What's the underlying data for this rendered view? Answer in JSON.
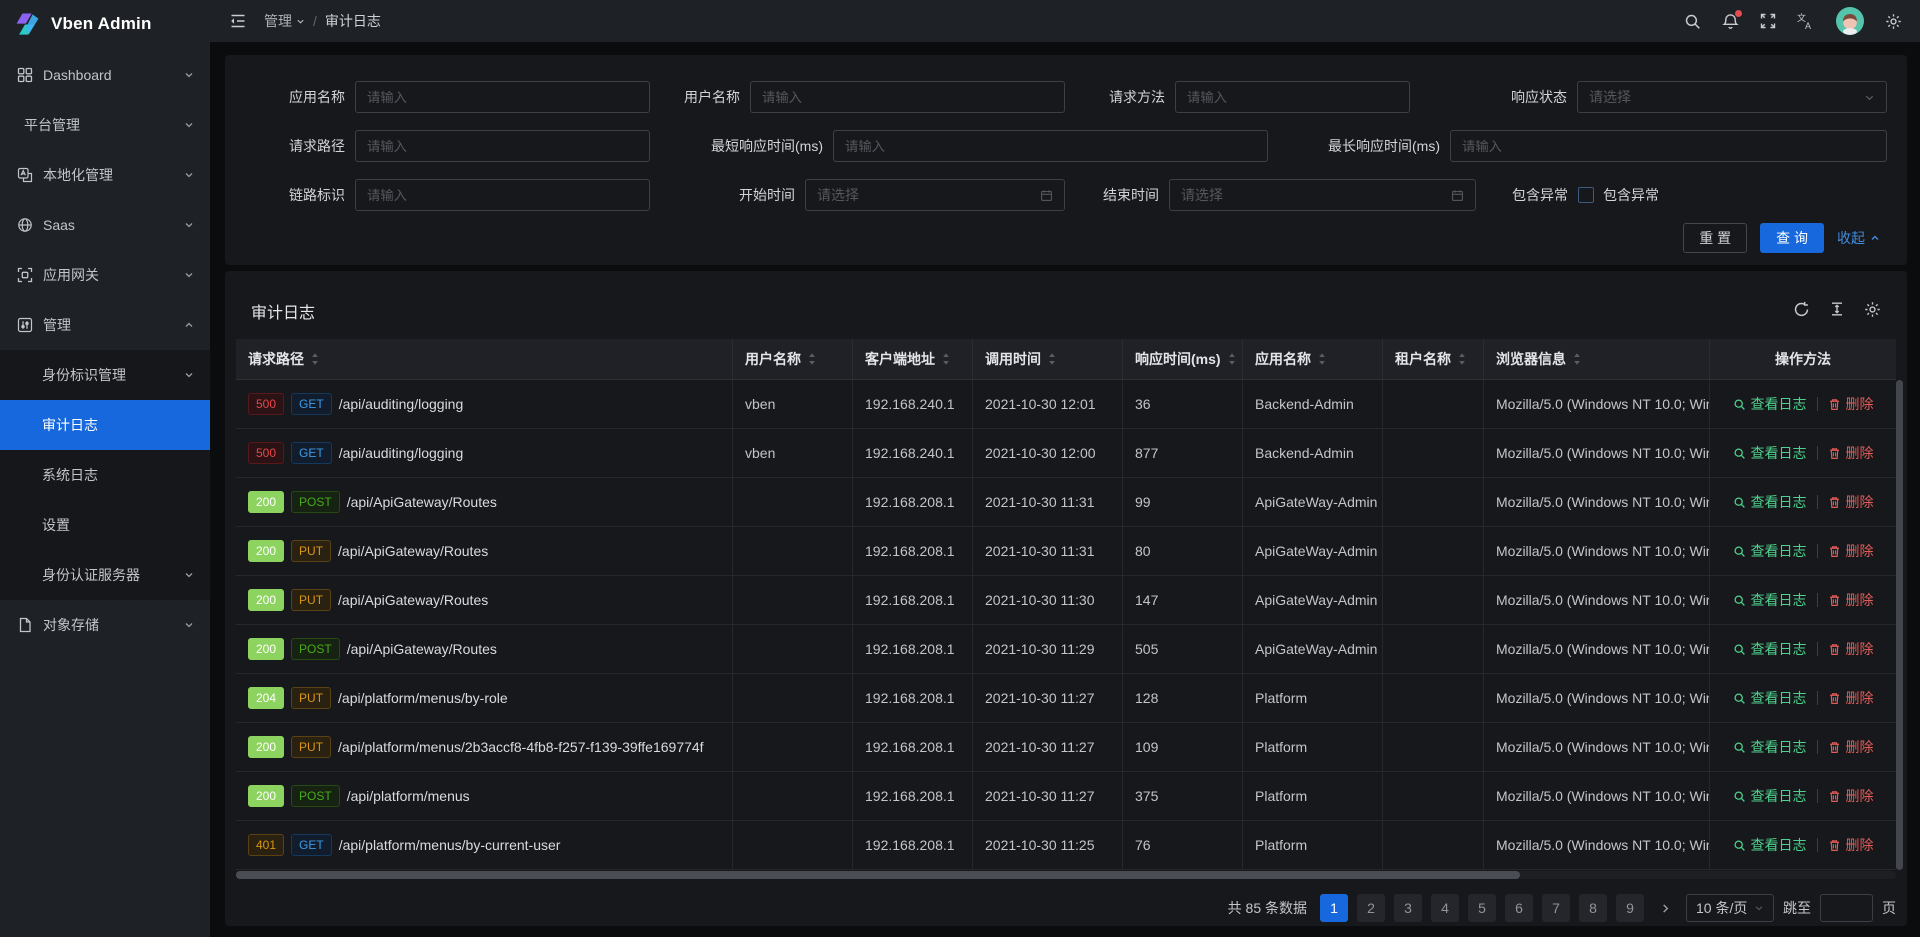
{
  "colors": {
    "primary": "#1668dc",
    "status_500": "#e84749",
    "status_2xx_bg": "#8dd35f",
    "status_401": "#d89614",
    "method_get": "#3c9ae8",
    "method_post": "#49aa19",
    "method_put": "#d89614",
    "action_view": "#4dd18c",
    "action_delete": "#e25d59",
    "notification_dot": "#e34d4d"
  },
  "app": {
    "title": "Vben Admin"
  },
  "header": {
    "breadcrumb": {
      "root": "管理",
      "current": "审计日志",
      "separator": "/"
    },
    "icon_names": [
      "menu-fold-icon",
      "search-icon",
      "notification-bell-icon",
      "fullscreen-icon",
      "translate-icon",
      "avatar",
      "settings-gear-icon"
    ]
  },
  "sidebar": {
    "items": [
      {
        "label": "Dashboard",
        "icon": "dashboard-icon",
        "chevron": "down",
        "type": "top",
        "active": false
      },
      {
        "label": "平台管理",
        "icon": null,
        "chevron": "down",
        "type": "top",
        "active": false
      },
      {
        "label": "本地化管理",
        "icon": "localization-icon",
        "chevron": "down",
        "type": "top",
        "active": false
      },
      {
        "label": "Saas",
        "icon": "saas-icon",
        "chevron": "down",
        "type": "top",
        "active": false
      },
      {
        "label": "应用网关",
        "icon": "gateway-icon",
        "chevron": "down",
        "type": "top",
        "active": false
      },
      {
        "label": "管理",
        "icon": "management-icon",
        "chevron": "up",
        "type": "top",
        "active": false
      },
      {
        "label": "身份标识管理",
        "icon": null,
        "chevron": "down",
        "type": "sub",
        "active": false
      },
      {
        "label": "审计日志",
        "icon": null,
        "chevron": null,
        "type": "sub",
        "active": true
      },
      {
        "label": "系统日志",
        "icon": null,
        "chevron": null,
        "type": "sub",
        "active": false
      },
      {
        "label": "设置",
        "icon": null,
        "chevron": null,
        "type": "sub",
        "active": false
      },
      {
        "label": "身份认证服务器",
        "icon": null,
        "chevron": "down",
        "type": "sub",
        "active": false
      },
      {
        "label": "对象存储",
        "icon": "storage-icon",
        "chevron": "down",
        "type": "top",
        "active": false
      }
    ]
  },
  "filter": {
    "fields": {
      "app_name": {
        "label": "应用名称",
        "placeholder": "请输入"
      },
      "user_name": {
        "label": "用户名称",
        "placeholder": "请输入"
      },
      "http_method": {
        "label": "请求方法",
        "placeholder": "请输入"
      },
      "response_status": {
        "label": "响应状态",
        "placeholder": "请选择"
      },
      "request_path": {
        "label": "请求路径",
        "placeholder": "请输入"
      },
      "min_response_time": {
        "label": "最短响应时间(ms)",
        "placeholder": "请输入"
      },
      "max_response_time": {
        "label": "最长响应时间(ms)",
        "placeholder": "请输入"
      },
      "trace_id": {
        "label": "链路标识",
        "placeholder": "请输入"
      },
      "start_time": {
        "label": "开始时间",
        "placeholder": "请选择"
      },
      "end_time": {
        "label": "结束时间",
        "placeholder": "请选择"
      },
      "include_exception": {
        "label": "包含异常",
        "checkbox_label": "包含异常",
        "checked": false
      }
    },
    "buttons": {
      "reset": "重 置",
      "search": "查 询",
      "collapse": "收起"
    }
  },
  "table": {
    "title": "审计日志",
    "columns": [
      {
        "label": "请求路径",
        "sortable": true
      },
      {
        "label": "用户名称",
        "sortable": true
      },
      {
        "label": "客户端地址",
        "sortable": true
      },
      {
        "label": "调用时间",
        "sortable": true
      },
      {
        "label": "响应时间(ms)",
        "sortable": true
      },
      {
        "label": "应用名称",
        "sortable": true
      },
      {
        "label": "租户名称",
        "sortable": true
      },
      {
        "label": "浏览器信息",
        "sortable": true
      },
      {
        "label": "操作方法",
        "sortable": false
      }
    ],
    "actions": {
      "view": "查看日志",
      "delete": "删除"
    },
    "rows": [
      {
        "status": "500",
        "status_variant": "error-red",
        "method": "GET",
        "method_variant": "get-blue",
        "path": "/api/auditing/logging",
        "user": "vben",
        "client_ip": "192.168.240.1",
        "time": "2021-10-30 12:01",
        "duration_ms": "36",
        "app_name": "Backend-Admin",
        "tenant": "",
        "browser": "Mozilla/5.0 (Windows NT 10.0; Win"
      },
      {
        "status": "500",
        "status_variant": "error-red",
        "method": "GET",
        "method_variant": "get-blue",
        "path": "/api/auditing/logging",
        "user": "vben",
        "client_ip": "192.168.240.1",
        "time": "2021-10-30 12:00",
        "duration_ms": "877",
        "app_name": "Backend-Admin",
        "tenant": "",
        "browser": "Mozilla/5.0 (Windows NT 10.0; Win"
      },
      {
        "status": "200",
        "status_variant": "success-solid",
        "method": "POST",
        "method_variant": "post-green",
        "path": "/api/ApiGateway/Routes",
        "user": "",
        "client_ip": "192.168.208.1",
        "time": "2021-10-30 11:31",
        "duration_ms": "99",
        "app_name": "ApiGateWay-Admin",
        "tenant": "",
        "browser": "Mozilla/5.0 (Windows NT 10.0; Win"
      },
      {
        "status": "200",
        "status_variant": "success-solid",
        "method": "PUT",
        "method_variant": "put-orange",
        "path": "/api/ApiGateway/Routes",
        "user": "",
        "client_ip": "192.168.208.1",
        "time": "2021-10-30 11:31",
        "duration_ms": "80",
        "app_name": "ApiGateWay-Admin",
        "tenant": "",
        "browser": "Mozilla/5.0 (Windows NT 10.0; Win"
      },
      {
        "status": "200",
        "status_variant": "success-solid",
        "method": "PUT",
        "method_variant": "put-orange",
        "path": "/api/ApiGateway/Routes",
        "user": "",
        "client_ip": "192.168.208.1",
        "time": "2021-10-30 11:30",
        "duration_ms": "147",
        "app_name": "ApiGateWay-Admin",
        "tenant": "",
        "browser": "Mozilla/5.0 (Windows NT 10.0; Win"
      },
      {
        "status": "200",
        "status_variant": "success-solid",
        "method": "POST",
        "method_variant": "post-green",
        "path": "/api/ApiGateway/Routes",
        "user": "",
        "client_ip": "192.168.208.1",
        "time": "2021-10-30 11:29",
        "duration_ms": "505",
        "app_name": "ApiGateWay-Admin",
        "tenant": "",
        "browser": "Mozilla/5.0 (Windows NT 10.0; Win"
      },
      {
        "status": "204",
        "status_variant": "success-solid",
        "method": "PUT",
        "method_variant": "put-orange",
        "path": "/api/platform/menus/by-role",
        "user": "",
        "client_ip": "192.168.208.1",
        "time": "2021-10-30 11:27",
        "duration_ms": "128",
        "app_name": "Platform",
        "tenant": "",
        "browser": "Mozilla/5.0 (Windows NT 10.0; Win"
      },
      {
        "status": "200",
        "status_variant": "success-solid",
        "method": "PUT",
        "method_variant": "put-orange",
        "path": "/api/platform/menus/2b3accf8-4fb8-f257-f139-39ffe169774f",
        "user": "",
        "client_ip": "192.168.208.1",
        "time": "2021-10-30 11:27",
        "duration_ms": "109",
        "app_name": "Platform",
        "tenant": "",
        "browser": "Mozilla/5.0 (Windows NT 10.0; Win"
      },
      {
        "status": "200",
        "status_variant": "success-solid",
        "method": "POST",
        "method_variant": "post-green",
        "path": "/api/platform/menus",
        "user": "",
        "client_ip": "192.168.208.1",
        "time": "2021-10-30 11:27",
        "duration_ms": "375",
        "app_name": "Platform",
        "tenant": "",
        "browser": "Mozilla/5.0 (Windows NT 10.0; Win"
      },
      {
        "status": "401",
        "status_variant": "warning-orange",
        "method": "GET",
        "method_variant": "get-blue",
        "path": "/api/platform/menus/by-current-user",
        "user": "",
        "client_ip": "192.168.208.1",
        "time": "2021-10-30 11:25",
        "duration_ms": "76",
        "app_name": "Platform",
        "tenant": "",
        "browser": "Mozilla/5.0 (Windows NT 10.0; Win"
      }
    ]
  },
  "pagination": {
    "total_text": "共 85 条数据",
    "pages": [
      "1",
      "2",
      "3",
      "4",
      "5",
      "6",
      "7",
      "8",
      "9"
    ],
    "active_page": "1",
    "page_size": "10 条/页",
    "jump_prefix": "跳至",
    "jump_suffix": "页"
  }
}
